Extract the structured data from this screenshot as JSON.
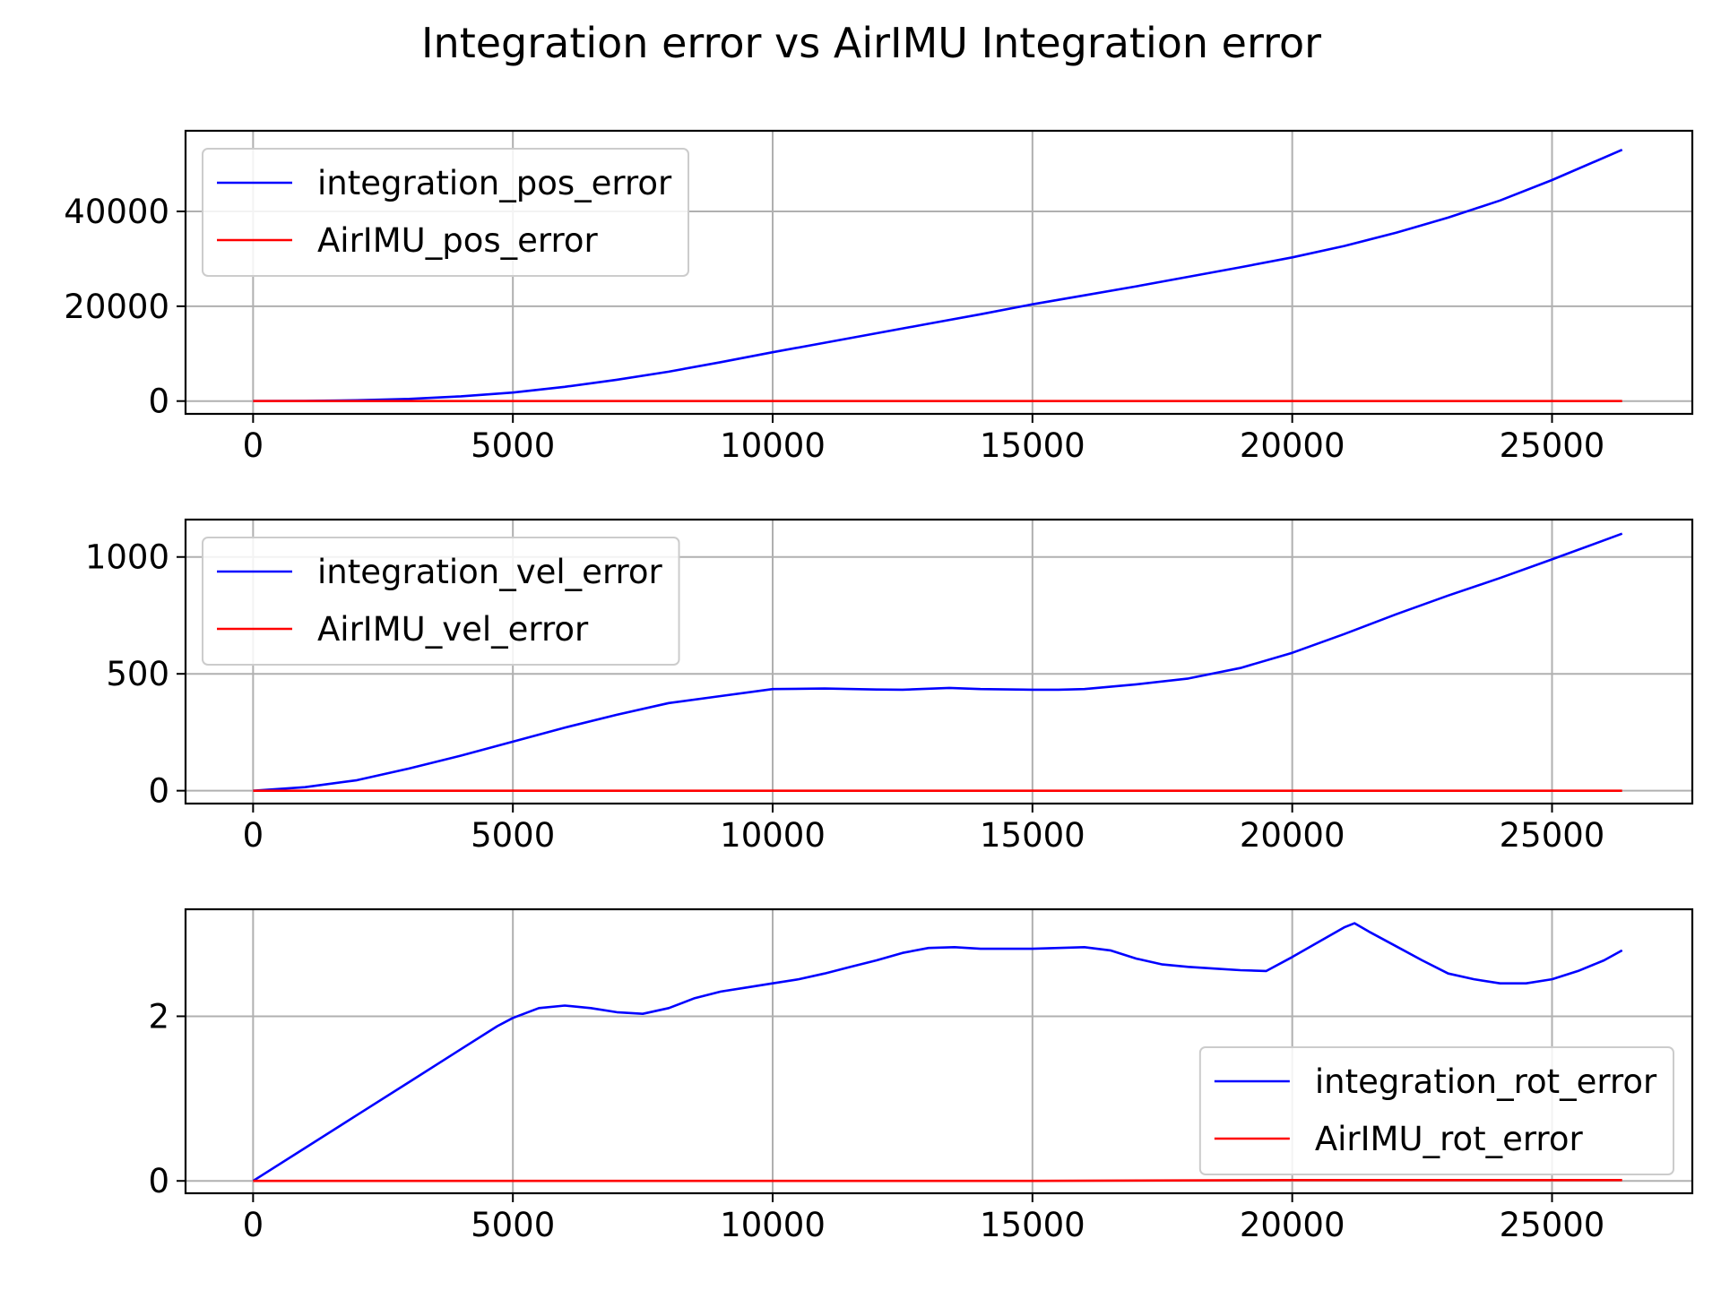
{
  "chart_data": {
    "title": "Integration error vs AirIMU Integration error",
    "type": "line",
    "subplots": [
      {
        "type": "line",
        "xlim": [
          -1300,
          27700
        ],
        "ylim": [
          -2700,
          57000
        ],
        "xticks": [
          0,
          5000,
          10000,
          15000,
          20000,
          25000
        ],
        "yticks": [
          0,
          20000,
          40000
        ],
        "grid": true,
        "legend_placement": "upper-left",
        "series": [
          {
            "name": "integration_pos_error",
            "color": "#0000ff",
            "x": [
              0,
              1000,
              2000,
              3000,
              4000,
              5000,
              6000,
              7000,
              8000,
              9000,
              10000,
              11000,
              12000,
              13000,
              14000,
              15000,
              16000,
              17000,
              18000,
              19000,
              20000,
              21000,
              22000,
              23000,
              24000,
              25000,
              26350
            ],
            "y": [
              0,
              40,
              180,
              450,
              1000,
              1800,
              3000,
              4500,
              6200,
              8200,
              10300,
              12300,
              14300,
              16300,
              18300,
              20400,
              22300,
              24200,
              26200,
              28200,
              30300,
              32700,
              35500,
              38700,
              42300,
              46600,
              53000
            ]
          },
          {
            "name": "AirIMU_pos_error",
            "color": "#ff0000",
            "x": [
              0,
              5000,
              10000,
              15000,
              20000,
              26350
            ],
            "y": [
              0,
              0,
              0,
              0,
              0,
              0
            ]
          }
        ]
      },
      {
        "type": "line",
        "xlim": [
          -1300,
          27700
        ],
        "ylim": [
          -55,
          1160
        ],
        "xticks": [
          0,
          5000,
          10000,
          15000,
          20000,
          25000
        ],
        "yticks": [
          0,
          500,
          1000
        ],
        "grid": true,
        "legend_placement": "upper-left",
        "series": [
          {
            "name": "integration_vel_error",
            "color": "#0000ff",
            "x": [
              0,
              1000,
              2000,
              3000,
              4000,
              5000,
              6000,
              7000,
              8000,
              9000,
              10000,
              11000,
              12000,
              12500,
              13400,
              14000,
              15000,
              15500,
              16000,
              17000,
              18000,
              19000,
              20000,
              21000,
              22000,
              23000,
              24000,
              25000,
              26350
            ],
            "y": [
              0,
              15,
              45,
              95,
              150,
              210,
              270,
              325,
              375,
              405,
              435,
              437,
              433,
              432,
              440,
              435,
              432,
              432,
              435,
              455,
              480,
              525,
              590,
              670,
              755,
              835,
              910,
              990,
              1100
            ]
          },
          {
            "name": "AirIMU_vel_error",
            "color": "#ff0000",
            "x": [
              0,
              5000,
              10000,
              15000,
              20000,
              26350
            ],
            "y": [
              0,
              0,
              0,
              0,
              0,
              0
            ]
          }
        ]
      },
      {
        "type": "line",
        "xlim": [
          -1300,
          27700
        ],
        "ylim": [
          -0.15,
          3.3
        ],
        "xticks": [
          0,
          5000,
          10000,
          15000,
          20000,
          25000
        ],
        "yticks": [
          0,
          2
        ],
        "grid": true,
        "legend_placement": "lower-right",
        "series": [
          {
            "name": "integration_rot_error",
            "color": "#0000ff",
            "x": [
              0,
              1000,
              2000,
              3000,
              4000,
              4700,
              5000,
              5500,
              6000,
              6500,
              7000,
              7500,
              8000,
              8500,
              9000,
              9500,
              10000,
              10500,
              11000,
              11500,
              12000,
              12500,
              13000,
              13500,
              14000,
              14500,
              15000,
              15500,
              16000,
              16500,
              17000,
              17500,
              18000,
              18500,
              19000,
              19500,
              20000,
              20500,
              21000,
              21200,
              21500,
              22000,
              22500,
              23000,
              23500,
              24000,
              24500,
              25000,
              25500,
              26000,
              26350
            ],
            "y": [
              0,
              0.4,
              0.8,
              1.2,
              1.6,
              1.88,
              1.98,
              2.1,
              2.13,
              2.1,
              2.05,
              2.03,
              2.1,
              2.22,
              2.3,
              2.35,
              2.4,
              2.45,
              2.52,
              2.6,
              2.68,
              2.77,
              2.83,
              2.84,
              2.82,
              2.82,
              2.82,
              2.83,
              2.84,
              2.8,
              2.7,
              2.63,
              2.6,
              2.58,
              2.56,
              2.55,
              2.72,
              2.9,
              3.08,
              3.13,
              3.02,
              2.85,
              2.68,
              2.52,
              2.45,
              2.4,
              2.4,
              2.45,
              2.55,
              2.68,
              2.8
            ]
          },
          {
            "name": "AirIMU_rot_error",
            "color": "#ff0000",
            "x": [
              0,
              5000,
              10000,
              15000,
              20000,
              26350
            ],
            "y": [
              0,
              0,
              0,
              0,
              0.01,
              0.01
            ]
          }
        ]
      }
    ]
  }
}
